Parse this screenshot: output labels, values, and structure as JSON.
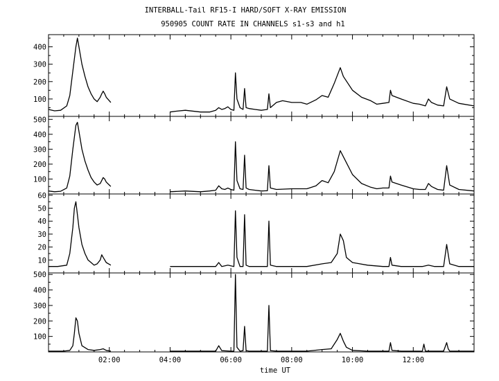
{
  "title_line1": "INTERBALL-Tail RF15-I HARD/SOFT X-RAY EMISSION",
  "title_line2": "950905  COUNT RATE IN CHANNELS s1-s3 and h1",
  "chart_data": [
    {
      "type": "line",
      "title": "",
      "xlabel": "",
      "ylabel": "",
      "xlim": [
        0,
        14
      ],
      "ylim": [
        0,
        470
      ],
      "yticks": [
        100,
        200,
        300,
        400
      ],
      "series": [
        {
          "x": [
            0.0,
            0.2,
            0.4,
            0.6,
            0.7,
            0.8,
            0.9,
            0.95,
            1.0,
            1.1,
            1.2,
            1.3,
            1.4,
            1.5,
            1.6,
            1.7,
            1.75,
            1.8,
            1.85,
            1.9,
            2.0,
            2.05,
            null,
            4.0,
            4.2,
            4.5,
            5.0,
            5.3,
            5.5,
            5.6,
            5.7,
            5.8,
            5.9,
            6.0,
            6.1,
            6.15,
            6.2,
            6.3,
            6.4,
            6.45,
            6.5,
            6.6,
            6.8,
            7.0,
            7.2,
            7.25,
            7.3,
            7.5,
            7.7,
            8.0,
            8.3,
            8.5,
            8.8,
            9.0,
            9.2,
            9.4,
            9.6,
            9.7,
            10.0,
            10.3,
            10.6,
            10.8,
            11.0,
            11.2,
            11.25,
            11.3,
            11.6,
            12.0,
            12.2,
            12.4,
            12.5,
            12.6,
            12.8,
            13.0,
            13.1,
            13.2,
            13.5,
            14.0
          ],
          "values": [
            40,
            32,
            35,
            60,
            120,
            260,
            400,
            450,
            400,
            300,
            230,
            170,
            130,
            100,
            85,
            110,
            130,
            145,
            130,
            110,
            90,
            80,
            null,
            25,
            30,
            35,
            25,
            25,
            35,
            50,
            40,
            45,
            55,
            40,
            35,
            250,
            100,
            50,
            40,
            160,
            50,
            45,
            40,
            35,
            40,
            130,
            50,
            80,
            90,
            80,
            80,
            70,
            95,
            120,
            110,
            190,
            280,
            230,
            150,
            110,
            90,
            70,
            75,
            80,
            150,
            120,
            100,
            75,
            70,
            60,
            100,
            80,
            65,
            60,
            170,
            100,
            75,
            60
          ]
        }
      ]
    },
    {
      "type": "line",
      "title": "",
      "xlabel": "",
      "ylabel": "",
      "xlim": [
        0,
        14
      ],
      "ylim": [
        0,
        520
      ],
      "yticks": [
        100,
        200,
        300,
        400,
        500
      ],
      "series": [
        {
          "x": [
            0.0,
            0.2,
            0.4,
            0.6,
            0.7,
            0.8,
            0.9,
            0.95,
            1.0,
            1.1,
            1.2,
            1.3,
            1.4,
            1.5,
            1.6,
            1.7,
            1.75,
            1.8,
            1.85,
            1.9,
            2.0,
            2.05,
            null,
            4.0,
            4.5,
            5.0,
            5.3,
            5.5,
            5.6,
            5.7,
            5.8,
            5.9,
            6.0,
            6.1,
            6.15,
            6.2,
            6.3,
            6.4,
            6.45,
            6.5,
            6.6,
            6.8,
            7.0,
            7.2,
            7.25,
            7.3,
            7.5,
            8.0,
            8.5,
            8.8,
            9.0,
            9.2,
            9.4,
            9.6,
            9.7,
            10.0,
            10.3,
            10.6,
            10.8,
            11.0,
            11.2,
            11.25,
            11.3,
            11.6,
            12.0,
            12.2,
            12.4,
            12.5,
            12.6,
            12.8,
            13.0,
            13.1,
            13.2,
            13.5,
            14.0
          ],
          "values": [
            20,
            15,
            18,
            40,
            120,
            300,
            460,
            480,
            420,
            300,
            220,
            160,
            110,
            80,
            60,
            70,
            90,
            110,
            100,
            80,
            60,
            50,
            null,
            15,
            20,
            15,
            20,
            25,
            55,
            35,
            30,
            40,
            30,
            25,
            350,
            90,
            35,
            30,
            260,
            40,
            30,
            25,
            20,
            22,
            190,
            40,
            30,
            35,
            35,
            55,
            90,
            75,
            150,
            290,
            250,
            130,
            70,
            45,
            35,
            40,
            40,
            120,
            80,
            60,
            35,
            30,
            30,
            70,
            50,
            30,
            25,
            190,
            60,
            30,
            20
          ]
        }
      ]
    },
    {
      "type": "line",
      "title": "",
      "xlabel": "",
      "ylabel": "",
      "xlim": [
        0,
        14
      ],
      "ylim": [
        0,
        61
      ],
      "yticks": [
        10,
        20,
        30,
        40,
        50,
        60
      ],
      "series": [
        {
          "x": [
            0.0,
            0.3,
            0.6,
            0.7,
            0.8,
            0.85,
            0.9,
            0.95,
            1.0,
            1.1,
            1.2,
            1.3,
            1.4,
            1.5,
            1.6,
            1.7,
            1.75,
            1.8,
            1.9,
            2.05,
            null,
            4.0,
            4.5,
            5.0,
            5.5,
            5.6,
            5.7,
            5.9,
            6.1,
            6.15,
            6.2,
            6.3,
            6.4,
            6.45,
            6.5,
            6.6,
            7.0,
            7.2,
            7.25,
            7.3,
            7.5,
            8.0,
            8.5,
            9.0,
            9.3,
            9.5,
            9.6,
            9.7,
            9.8,
            10.0,
            10.5,
            11.0,
            11.2,
            11.25,
            11.3,
            11.6,
            12.0,
            12.3,
            12.5,
            12.7,
            13.0,
            13.1,
            13.2,
            13.5,
            14.0
          ],
          "values": [
            5,
            5,
            6,
            15,
            35,
            50,
            55,
            45,
            35,
            22,
            15,
            10,
            8,
            6,
            7,
            10,
            14,
            12,
            8,
            6,
            null,
            5,
            5,
            5,
            5,
            8,
            5,
            6,
            5,
            48,
            12,
            5,
            5,
            45,
            6,
            5,
            5,
            5,
            40,
            6,
            5,
            5,
            5,
            7,
            8,
            15,
            30,
            25,
            12,
            8,
            6,
            5,
            5,
            12,
            6,
            5,
            5,
            5,
            6,
            5,
            5,
            22,
            7,
            5,
            5
          ]
        }
      ]
    },
    {
      "type": "line",
      "title": "",
      "xlabel": "time UT",
      "ylabel": "",
      "xlim": [
        0,
        14
      ],
      "ylim": [
        0,
        510
      ],
      "yticks": [
        100,
        200,
        300,
        400,
        500
      ],
      "xticks": [
        2,
        4,
        6,
        8,
        10,
        12
      ],
      "xticklabels": [
        "02:00",
        "04:00",
        "06:00",
        "08:00",
        "10:00",
        "12:00"
      ],
      "series": [
        {
          "x": [
            0.0,
            0.5,
            0.7,
            0.8,
            0.85,
            0.9,
            0.95,
            1.0,
            1.1,
            1.3,
            1.5,
            1.7,
            1.8,
            1.9,
            2.05,
            null,
            4.0,
            4.5,
            5.0,
            5.5,
            5.6,
            5.7,
            6.0,
            6.1,
            6.15,
            6.2,
            6.3,
            6.4,
            6.45,
            6.5,
            6.6,
            7.0,
            7.2,
            7.25,
            7.3,
            7.5,
            8.0,
            8.5,
            9.0,
            9.3,
            9.5,
            9.6,
            9.7,
            9.8,
            10.0,
            10.5,
            11.0,
            11.2,
            11.25,
            11.3,
            11.6,
            12.0,
            12.3,
            12.35,
            12.4,
            12.7,
            13.0,
            13.1,
            13.15,
            13.2,
            13.5,
            14.0
          ],
          "values": [
            5,
            5,
            10,
            40,
            120,
            220,
            200,
            120,
            40,
            15,
            10,
            15,
            20,
            10,
            5,
            null,
            5,
            5,
            5,
            5,
            40,
            8,
            5,
            5,
            500,
            30,
            5,
            8,
            165,
            8,
            5,
            5,
            5,
            300,
            8,
            5,
            5,
            5,
            15,
            20,
            80,
            120,
            70,
            30,
            10,
            5,
            5,
            5,
            60,
            10,
            5,
            5,
            5,
            50,
            5,
            5,
            5,
            60,
            20,
            5,
            5,
            5
          ]
        }
      ]
    }
  ]
}
